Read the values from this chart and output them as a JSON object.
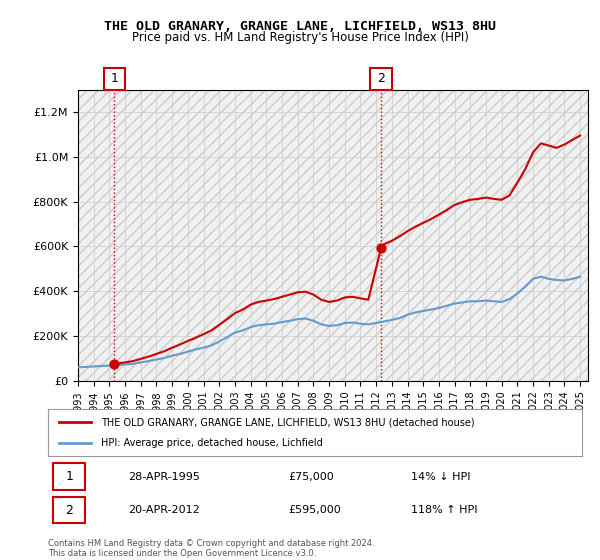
{
  "title_line1": "THE OLD GRANARY, GRANGE LANE, LICHFIELD, WS13 8HU",
  "title_line2": "Price paid vs. HM Land Registry's House Price Index (HPI)",
  "legend_label1": "THE OLD GRANARY, GRANGE LANE, LICHFIELD, WS13 8HU (detached house)",
  "legend_label2": "HPI: Average price, detached house, Lichfield",
  "annotation1": {
    "num": "1",
    "date": "28-APR-1995",
    "price": "£75,000",
    "hpi": "14% ↓ HPI",
    "x_year": 1995.32,
    "y_val": 75000
  },
  "annotation2": {
    "num": "2",
    "date": "20-APR-2012",
    "price": "£595,000",
    "hpi": "118% ↑ HPI",
    "x_year": 2012.32,
    "y_val": 595000
  },
  "footer": "Contains HM Land Registry data © Crown copyright and database right 2024.\nThis data is licensed under the Open Government Licence v3.0.",
  "hpi_color": "#6699cc",
  "price_color": "#cc0000",
  "hpi_data_x": [
    1993,
    1993.5,
    1994,
    1994.5,
    1995,
    1995.5,
    1996,
    1996.5,
    1997,
    1997.5,
    1998,
    1998.5,
    1999,
    1999.5,
    2000,
    2000.5,
    2001,
    2001.5,
    2002,
    2002.5,
    2003,
    2003.5,
    2004,
    2004.5,
    2005,
    2005.5,
    2006,
    2006.5,
    2007,
    2007.5,
    2008,
    2008.5,
    2009,
    2009.5,
    2010,
    2010.5,
    2011,
    2011.5,
    2012,
    2012.5,
    2013,
    2013.5,
    2014,
    2014.5,
    2015,
    2015.5,
    2016,
    2016.5,
    2017,
    2017.5,
    2018,
    2018.5,
    2019,
    2019.5,
    2020,
    2020.5,
    2021,
    2021.5,
    2022,
    2022.5,
    2023,
    2023.5,
    2024,
    2024.5,
    2025
  ],
  "hpi_data_y": [
    60000,
    62000,
    64000,
    66000,
    68000,
    70000,
    73000,
    76000,
    82000,
    88000,
    95000,
    102000,
    112000,
    120000,
    130000,
    140000,
    148000,
    158000,
    175000,
    195000,
    215000,
    225000,
    240000,
    248000,
    252000,
    255000,
    262000,
    268000,
    275000,
    278000,
    268000,
    252000,
    245000,
    248000,
    258000,
    260000,
    255000,
    252000,
    258000,
    265000,
    272000,
    280000,
    295000,
    305000,
    312000,
    318000,
    325000,
    335000,
    345000,
    350000,
    355000,
    355000,
    358000,
    355000,
    352000,
    365000,
    390000,
    420000,
    455000,
    465000,
    455000,
    450000,
    448000,
    455000,
    465000
  ],
  "price_data_x": [
    1993,
    1995.32,
    1995.5,
    1996,
    1996.5,
    1997,
    1997.5,
    1998,
    1998.5,
    1999,
    1999.5,
    2000,
    2000.5,
    2001,
    2001.5,
    2002,
    2002.5,
    2003,
    2003.5,
    2004,
    2004.5,
    2005,
    2005.5,
    2006,
    2006.5,
    2007,
    2007.5,
    2008,
    2008.5,
    2009,
    2009.5,
    2010,
    2010.5,
    2011,
    2011.5,
    2012.32,
    2012.5,
    2013,
    2013.5,
    2014,
    2014.5,
    2015,
    2015.5,
    2016,
    2016.5,
    2017,
    2017.5,
    2018,
    2018.5,
    2019,
    2019.5,
    2020,
    2020.5,
    2021,
    2021.5,
    2022,
    2022.5,
    2023,
    2023.5,
    2024,
    2024.5,
    2025
  ],
  "price_data_y": [
    null,
    75000,
    78000,
    82000,
    88000,
    98000,
    108000,
    120000,
    132000,
    148000,
    162000,
    178000,
    192000,
    208000,
    225000,
    250000,
    275000,
    302000,
    318000,
    340000,
    352000,
    358000,
    365000,
    375000,
    385000,
    395000,
    398000,
    385000,
    362000,
    352000,
    358000,
    372000,
    375000,
    368000,
    362000,
    595000,
    610000,
    625000,
    645000,
    668000,
    688000,
    705000,
    722000,
    742000,
    762000,
    785000,
    798000,
    808000,
    812000,
    818000,
    812000,
    808000,
    828000,
    885000,
    945000,
    1020000,
    1060000,
    1050000,
    1040000,
    1055000,
    1075000,
    1095000
  ],
  "xlim": [
    1993,
    2025.5
  ],
  "ylim": [
    0,
    1300000
  ],
  "yticks": [
    0,
    200000,
    400000,
    600000,
    800000,
    1000000,
    1200000
  ],
  "xticks": [
    1993,
    1994,
    1995,
    1996,
    1997,
    1998,
    1999,
    2000,
    2001,
    2002,
    2003,
    2004,
    2005,
    2006,
    2007,
    2008,
    2009,
    2010,
    2011,
    2012,
    2013,
    2014,
    2015,
    2016,
    2017,
    2018,
    2019,
    2020,
    2021,
    2022,
    2023,
    2024,
    2025
  ],
  "hatch_color": "#cccccc",
  "bg_color": "#ffffff",
  "grid_color": "#cccccc"
}
